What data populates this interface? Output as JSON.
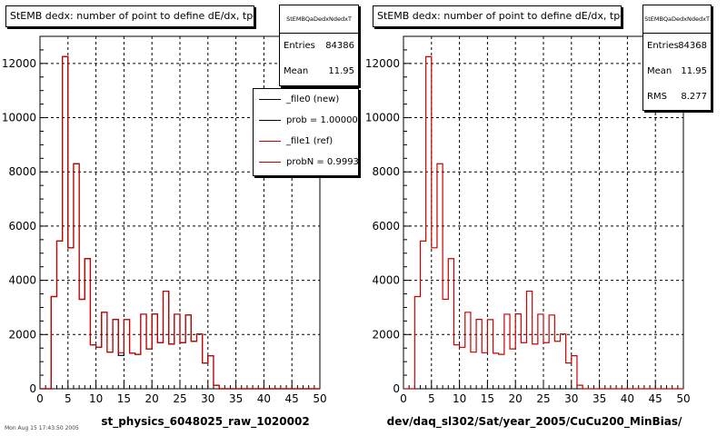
{
  "panels": [
    {
      "title": "StEMB dedx: number of point to define dE/dx, tpc",
      "stats": {
        "name": "StEMBQaDedxNdedxT",
        "rows": [
          {
            "label": "Entries",
            "value": "84386"
          },
          {
            "label": "Mean",
            "value": "11.95"
          }
        ]
      },
      "legend": [
        {
          "label": "_file0 (new)",
          "color": "#000000"
        },
        {
          "label": "prob = 1.000000",
          "color": "#000000"
        },
        {
          "label": "_file1 (ref)",
          "color": "#cc0000"
        },
        {
          "label": "probN = 0.999389",
          "color": "#cc0000"
        }
      ],
      "xlabel": "st_physics_6048025_raw_1020002"
    },
    {
      "title": "StEMB dedx: number of point to define dE/dx, tpc",
      "stats": {
        "name": "StEMBQaDedxNdedxT",
        "rows": [
          {
            "label": "Entries",
            "value": "84368"
          },
          {
            "label": "Mean",
            "value": "11.95"
          },
          {
            "label": "RMS",
            "value": "8.277"
          }
        ]
      },
      "legend": [],
      "xlabel": "dev/daq_sl302/Sat/year_2005/CuCu200_MinBias/"
    }
  ],
  "footer": "Mon Aug 15 17:43:50 2005",
  "chart_data": [
    {
      "type": "histogram",
      "title": "StEMB dedx: number of point to define dE/dx, tpc",
      "xlabel": "st_physics_6048025_raw_1020002",
      "ylabel": "",
      "xlim": [
        0,
        50
      ],
      "ylim": [
        0,
        13000
      ],
      "grid": true,
      "xticks": [
        0,
        5,
        10,
        15,
        20,
        25,
        30,
        35,
        40,
        45,
        50
      ],
      "yticks": [
        0,
        2000,
        4000,
        6000,
        8000,
        10000,
        12000
      ],
      "bin_edges_start": 0,
      "bin_width": 1,
      "series": [
        {
          "name": "_file0 (new)",
          "color": "#000000",
          "values": [
            0,
            0,
            3400,
            5450,
            12250,
            5200,
            8300,
            3300,
            4800,
            1620,
            1530,
            2820,
            1350,
            2560,
            1230,
            2550,
            1310,
            1270,
            2750,
            1470,
            2760,
            1700,
            3600,
            1650,
            2750,
            1700,
            2720,
            1750,
            2020,
            950,
            1220,
            130,
            0,
            0,
            0,
            0,
            0,
            0,
            0,
            0,
            0,
            0,
            0,
            0,
            0,
            0,
            0,
            0,
            0,
            0
          ]
        },
        {
          "name": "_file1 (ref)",
          "color": "#cc0000",
          "values": [
            0,
            0,
            3400,
            5450,
            12250,
            5200,
            8300,
            3300,
            4800,
            1620,
            1530,
            2820,
            1350,
            2560,
            1330,
            2550,
            1310,
            1270,
            2750,
            1470,
            2760,
            1700,
            3600,
            1650,
            2750,
            1700,
            2720,
            1750,
            2020,
            950,
            1220,
            130,
            0,
            0,
            0,
            0,
            0,
            0,
            0,
            0,
            0,
            0,
            0,
            0,
            0,
            0,
            0,
            0,
            0,
            0
          ]
        }
      ]
    },
    {
      "type": "histogram",
      "title": "StEMB dedx: number of point to define dE/dx, tpc",
      "xlabel": "dev/daq_sl302/Sat/year_2005/CuCu200_MinBias/",
      "ylabel": "",
      "xlim": [
        0,
        50
      ],
      "ylim": [
        0,
        13000
      ],
      "grid": true,
      "xticks": [
        0,
        5,
        10,
        15,
        20,
        25,
        30,
        35,
        40,
        45,
        50
      ],
      "yticks": [
        0,
        2000,
        4000,
        6000,
        8000,
        10000,
        12000
      ],
      "bin_edges_start": 0,
      "bin_width": 1,
      "series": [
        {
          "color": "#cc0000",
          "values": [
            0,
            0,
            3400,
            5450,
            12250,
            5200,
            8300,
            3300,
            4800,
            1620,
            1530,
            2820,
            1350,
            2560,
            1330,
            2550,
            1310,
            1270,
            2750,
            1470,
            2760,
            1700,
            3600,
            1650,
            2750,
            1700,
            2720,
            1750,
            2020,
            950,
            1220,
            130,
            0,
            0,
            0,
            0,
            0,
            0,
            0,
            0,
            0,
            0,
            0,
            0,
            0,
            0,
            0,
            0,
            0,
            0
          ]
        }
      ]
    }
  ]
}
